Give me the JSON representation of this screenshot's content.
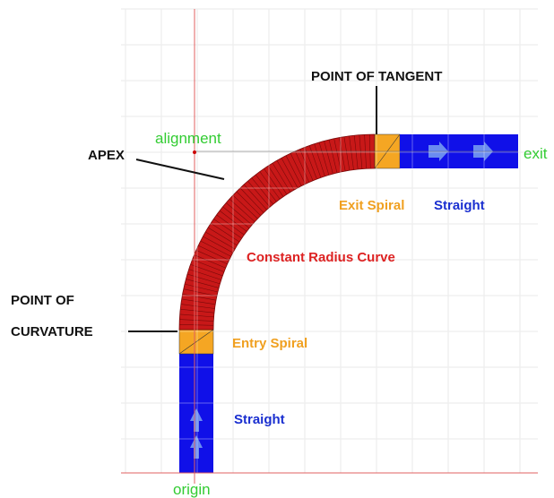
{
  "labels": {
    "point_of_tangent": "POINT OF TANGENT",
    "alignment": "alignment",
    "exit": "exit",
    "apex": "APEX",
    "exit_spiral": "Exit Spiral",
    "straight_top": "Straight",
    "constant_radius_curve": "Constant Radius Curve",
    "point_of_curvature_line1": "POINT OF",
    "point_of_curvature_line2": "CURVATURE",
    "entry_spiral": "Entry Spiral",
    "straight_bottom": "Straight",
    "origin": "origin"
  }
}
